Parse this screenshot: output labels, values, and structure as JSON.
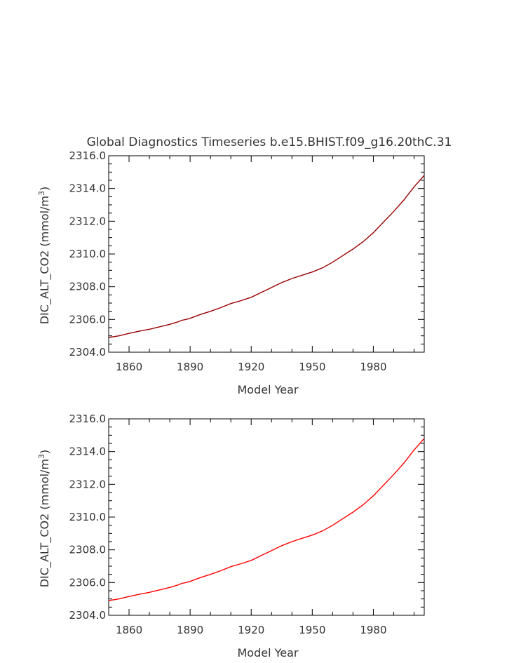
{
  "title": "Global Diagnostics Timeseries b.e15.BHIST.f09_g16.20thC.31",
  "chart_data": [
    {
      "type": "line",
      "title": "Global Diagnostics Timeseries b.e15.BHIST.f09_g16.20thC.31",
      "xlabel": "Model Year",
      "ylabel": "DIC_ALT_CO2 (mmol/m",
      "ylabel_sup": "3",
      "ylabel_close": ")",
      "xlim": [
        1850,
        2005
      ],
      "ylim": [
        2304.0,
        2316.0
      ],
      "x_ticks": [
        1860,
        1890,
        1920,
        1950,
        1980
      ],
      "y_ticks": [
        "2304.0",
        "2306.0",
        "2308.0",
        "2310.0",
        "2312.0",
        "2314.0",
        "2316.0"
      ],
      "line_color": "#990000",
      "x": [
        1850,
        1855,
        1860,
        1865,
        1870,
        1875,
        1880,
        1884,
        1886,
        1888,
        1890,
        1895,
        1900,
        1905,
        1910,
        1915,
        1920,
        1925,
        1930,
        1935,
        1940,
        1945,
        1950,
        1955,
        1960,
        1965,
        1970,
        1975,
        1980,
        1985,
        1990,
        1995,
        2000,
        2005
      ],
      "y": [
        2304.9,
        2305.0,
        2305.15,
        2305.28,
        2305.4,
        2305.55,
        2305.7,
        2305.85,
        2305.95,
        2306.0,
        2306.07,
        2306.3,
        2306.5,
        2306.72,
        2306.97,
        2307.15,
        2307.35,
        2307.65,
        2307.95,
        2308.25,
        2308.5,
        2308.7,
        2308.9,
        2309.15,
        2309.5,
        2309.9,
        2310.3,
        2310.75,
        2311.3,
        2311.95,
        2312.6,
        2313.3,
        2314.1,
        2314.8
      ]
    },
    {
      "type": "line",
      "title": "",
      "xlabel": "Model Year",
      "ylabel": "DIC_ALT_CO2 (mmol/m",
      "ylabel_sup": "3",
      "ylabel_close": ")",
      "xlim": [
        1850,
        2005
      ],
      "ylim": [
        2304.0,
        2316.0
      ],
      "x_ticks": [
        1860,
        1890,
        1920,
        1950,
        1980
      ],
      "y_ticks": [
        "2304.0",
        "2306.0",
        "2308.0",
        "2310.0",
        "2312.0",
        "2314.0",
        "2316.0"
      ],
      "line_color": "#ff0000",
      "x": [
        1850,
        1855,
        1860,
        1865,
        1870,
        1875,
        1880,
        1884,
        1886,
        1888,
        1890,
        1895,
        1900,
        1905,
        1910,
        1915,
        1920,
        1925,
        1930,
        1935,
        1940,
        1945,
        1950,
        1955,
        1960,
        1965,
        1970,
        1975,
        1980,
        1985,
        1990,
        1995,
        2000,
        2005
      ],
      "y": [
        2304.9,
        2305.0,
        2305.15,
        2305.28,
        2305.4,
        2305.55,
        2305.7,
        2305.85,
        2305.95,
        2306.0,
        2306.07,
        2306.3,
        2306.5,
        2306.72,
        2306.97,
        2307.15,
        2307.35,
        2307.65,
        2307.95,
        2308.25,
        2308.5,
        2308.7,
        2308.9,
        2309.15,
        2309.5,
        2309.9,
        2310.3,
        2310.75,
        2311.3,
        2311.95,
        2312.6,
        2313.3,
        2314.1,
        2314.8
      ]
    }
  ]
}
